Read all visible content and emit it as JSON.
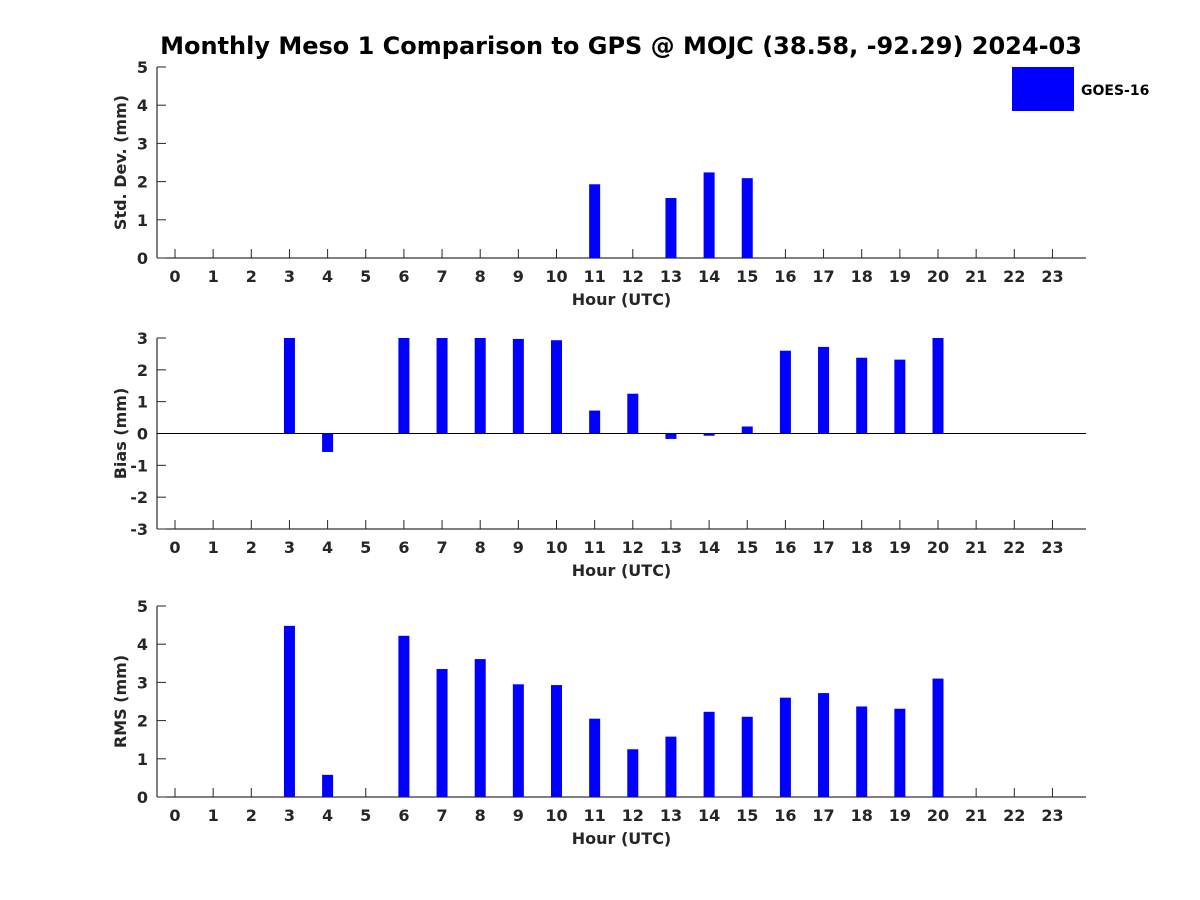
{
  "title": "Monthly Meso 1 Comparison to GPS @ MOJC (38.58, -92.29) 2024-03",
  "legend": {
    "label": "GOES-16",
    "color": "#0000ff"
  },
  "chart_data": [
    {
      "type": "bar",
      "ylabel": "Std. Dev. (mm)",
      "xlabel": "Hour (UTC)",
      "ylim": [
        0,
        5
      ],
      "yticks": [
        0,
        1,
        2,
        3,
        4,
        5
      ],
      "categories": [
        "0",
        "1",
        "2",
        "3",
        "4",
        "5",
        "6",
        "7",
        "8",
        "9",
        "10",
        "11",
        "12",
        "13",
        "14",
        "15",
        "16",
        "17",
        "18",
        "19",
        "20",
        "21",
        "22",
        "23"
      ],
      "series": [
        {
          "name": "GOES-16",
          "color": "#0000ff",
          "values": [
            null,
            null,
            null,
            null,
            null,
            null,
            null,
            null,
            null,
            null,
            null,
            1.93,
            null,
            1.57,
            2.24,
            2.09,
            null,
            null,
            null,
            null,
            null,
            null,
            null,
            null
          ]
        }
      ]
    },
    {
      "type": "bar",
      "ylabel": "Bias (mm)",
      "xlabel": "Hour (UTC)",
      "ylim": [
        -3,
        3
      ],
      "yticks": [
        -3,
        -2,
        -1,
        0,
        1,
        2,
        3
      ],
      "zero_line": true,
      "categories": [
        "0",
        "1",
        "2",
        "3",
        "4",
        "5",
        "6",
        "7",
        "8",
        "9",
        "10",
        "11",
        "12",
        "13",
        "14",
        "15",
        "16",
        "17",
        "18",
        "19",
        "20",
        "21",
        "22",
        "23"
      ],
      "series": [
        {
          "name": "GOES-16",
          "color": "#0000ff",
          "values": [
            null,
            null,
            null,
            3.0,
            -0.58,
            null,
            3.0,
            3.0,
            3.0,
            2.97,
            2.93,
            0.72,
            1.25,
            -0.17,
            -0.07,
            0.22,
            2.6,
            2.72,
            2.38,
            2.32,
            3.0,
            null,
            null,
            null
          ]
        }
      ]
    },
    {
      "type": "bar",
      "ylabel": "RMS (mm)",
      "xlabel": "Hour (UTC)",
      "ylim": [
        0,
        5
      ],
      "yticks": [
        0,
        1,
        2,
        3,
        4,
        5
      ],
      "categories": [
        "0",
        "1",
        "2",
        "3",
        "4",
        "5",
        "6",
        "7",
        "8",
        "9",
        "10",
        "11",
        "12",
        "13",
        "14",
        "15",
        "16",
        "17",
        "18",
        "19",
        "20",
        "21",
        "22",
        "23"
      ],
      "series": [
        {
          "name": "GOES-16",
          "color": "#0000ff",
          "values": [
            null,
            null,
            null,
            4.48,
            0.58,
            null,
            4.22,
            3.35,
            3.61,
            2.95,
            2.93,
            2.05,
            1.25,
            1.58,
            2.23,
            2.1,
            2.6,
            2.72,
            2.37,
            2.31,
            3.1,
            null,
            null,
            null
          ]
        }
      ]
    }
  ]
}
